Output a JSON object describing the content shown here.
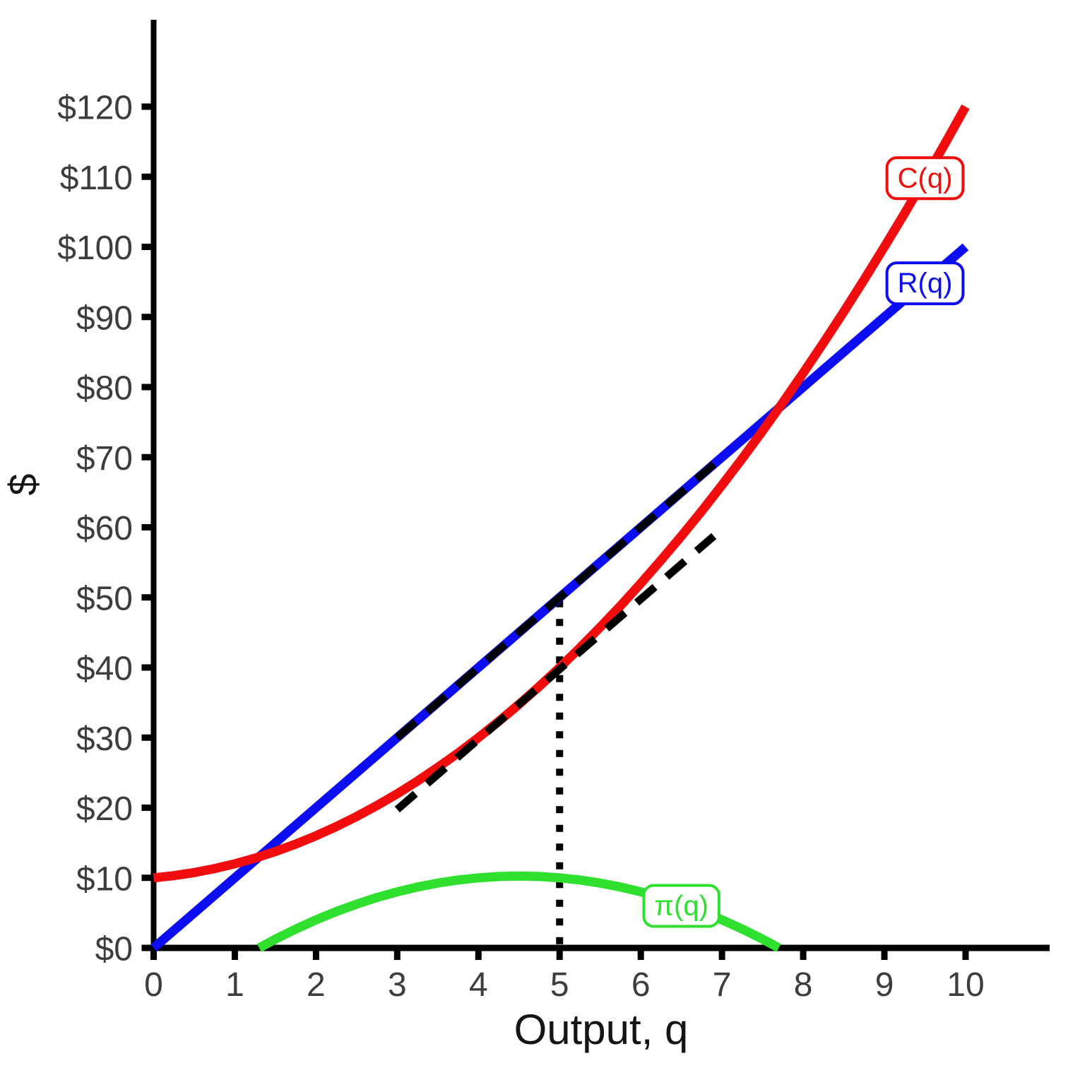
{
  "page": {
    "background": "#FFFFFF"
  },
  "colors": {
    "axis": "#000000",
    "tick_text": "#3D3D3D",
    "title_text": "#151515",
    "cost": "#F10D0D",
    "revenue": "#0D0DF1",
    "profit": "#2FE02F",
    "annotation": "#000000"
  },
  "chart_data": {
    "type": "line",
    "title": "",
    "xlabel": "Output, q",
    "ylabel": "$",
    "xlim": [
      0,
      10
    ],
    "ylim": [
      0,
      120
    ],
    "grid": false,
    "legend_position": "inline-boxed-labels",
    "x_axis": {
      "ticks": [
        0,
        1,
        2,
        3,
        4,
        5,
        6,
        7,
        8,
        9,
        10
      ],
      "tick_labels": [
        "0",
        "1",
        "2",
        "3",
        "4",
        "5",
        "6",
        "7",
        "8",
        "9",
        "10"
      ]
    },
    "y_axis": {
      "ticks": [
        0,
        10,
        20,
        30,
        40,
        50,
        60,
        70,
        80,
        90,
        100,
        110,
        120
      ],
      "tick_labels": [
        "$0",
        "$10",
        "$20",
        "$30",
        "$40",
        "$50",
        "$60",
        "$70",
        "$80",
        "$90",
        "$100",
        "$110",
        "$120"
      ]
    },
    "series": [
      {
        "name": "R(q)",
        "role": "revenue",
        "color": "#0D0DF1",
        "width": 13,
        "x": [
          0,
          10
        ],
        "y": [
          0,
          100
        ]
      },
      {
        "name": "π(q)",
        "role": "profit",
        "color": "#2FE02F",
        "width": 13,
        "x": [
          1.3,
          1.5,
          1.75,
          2,
          2.25,
          2.5,
          2.75,
          3,
          3.25,
          3.5,
          3.75,
          4,
          4.25,
          4.5,
          4.75,
          5,
          5.25,
          5.5,
          5.75,
          6,
          6.25,
          6.5,
          6.75,
          7,
          7.25,
          7.5,
          7.7
        ],
        "y": [
          0.01,
          1.25,
          2.69,
          4,
          5.19,
          6.25,
          7.19,
          8,
          8.69,
          9.25,
          9.69,
          10,
          10.19,
          10.25,
          10.19,
          10,
          9.69,
          9.25,
          8.69,
          8,
          7.19,
          6.25,
          5.19,
          4,
          2.69,
          1.25,
          0.01
        ]
      },
      {
        "name": "C(q)",
        "role": "cost",
        "color": "#F10D0D",
        "width": 13,
        "x": [
          0,
          0.25,
          0.5,
          0.75,
          1,
          1.25,
          1.5,
          1.75,
          2,
          2.25,
          2.5,
          2.75,
          3,
          3.25,
          3.5,
          3.75,
          4,
          4.25,
          4.5,
          4.75,
          5,
          5.25,
          5.5,
          5.75,
          6,
          6.25,
          6.5,
          6.75,
          7,
          7.25,
          7.5,
          7.75,
          8,
          8.25,
          8.5,
          8.75,
          9,
          9.25,
          9.5,
          9.75,
          10
        ],
        "y": [
          10,
          10.31,
          10.75,
          11.31,
          12,
          12.81,
          13.75,
          14.81,
          16,
          17.31,
          18.75,
          20.31,
          22,
          23.81,
          25.75,
          27.81,
          30,
          32.31,
          34.75,
          37.31,
          40,
          42.81,
          45.75,
          48.81,
          52,
          55.31,
          58.75,
          62.31,
          66,
          69.81,
          73.75,
          77.81,
          82,
          86.31,
          90.75,
          95.31,
          100,
          104.81,
          109.75,
          114.81,
          120
        ]
      }
    ],
    "annotations": [
      {
        "name": "optimal-output-dotted-line",
        "style": "dotted",
        "color": "#000000",
        "width": 10,
        "from": [
          5,
          49.6
        ],
        "to": [
          5,
          0.4
        ],
        "layer": "below"
      },
      {
        "name": "marginal-revenue-dashed-overlay",
        "style": "dashed",
        "color": "#000000",
        "width": 11,
        "from": [
          3,
          30
        ],
        "to": [
          6.9,
          69
        ],
        "layer": "above"
      },
      {
        "name": "cost-tangent-dashed-line",
        "style": "dashed",
        "color": "#000000",
        "width": 11,
        "from": [
          3,
          19.75
        ],
        "to": [
          6.9,
          58.75
        ],
        "layer": "above"
      }
    ],
    "curve_labels": [
      {
        "text": "C(q)",
        "series": "cost",
        "color": "#F10D0D",
        "at": [
          9.5,
          110
        ]
      },
      {
        "text": "R(q)",
        "series": "revenue",
        "color": "#0D0DF1",
        "at": [
          9.5,
          95
        ]
      },
      {
        "text": "π(q)",
        "series": "profit",
        "color": "#2FE02F",
        "at": [
          6.5,
          6.2
        ]
      }
    ]
  }
}
